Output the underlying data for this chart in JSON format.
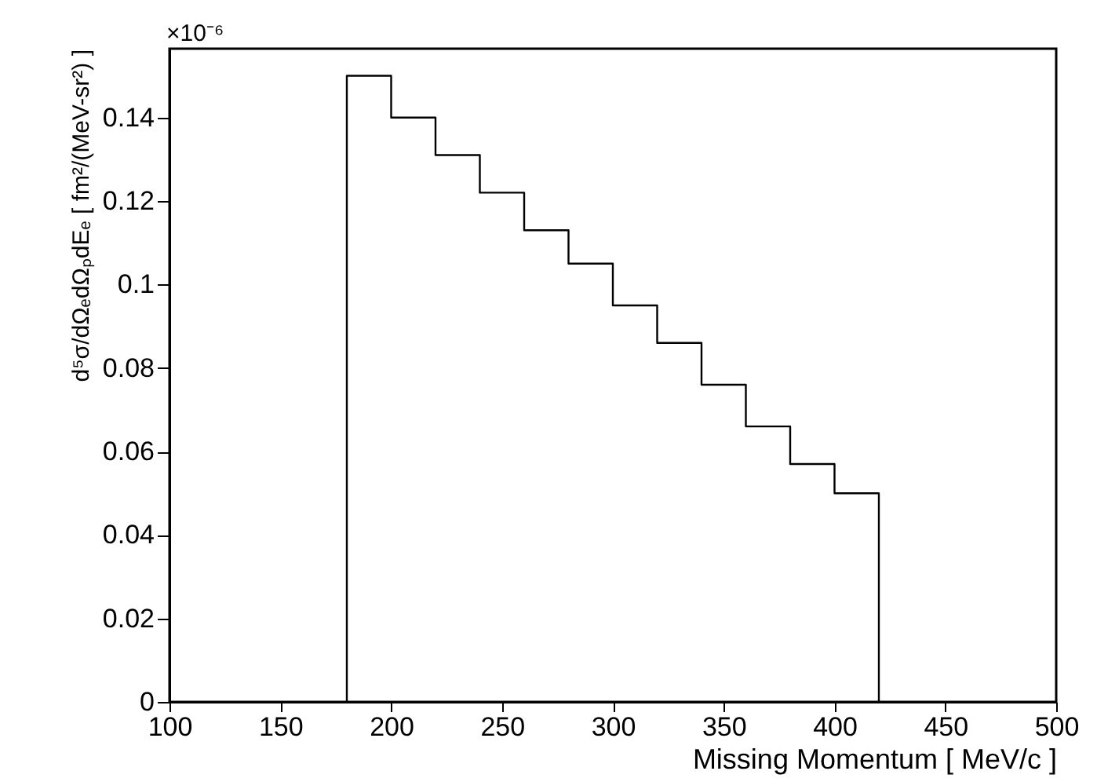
{
  "chart_data": {
    "type": "histogram",
    "xlabel": "Missing Momentum [ MeV/c ]",
    "ylabel": "d⁵σ/dΩₑdΩₚdEₑ [ fm²/(MeV-sr²) ]",
    "bins": [
      180,
      200,
      220,
      240,
      260,
      280,
      300,
      320,
      340,
      360,
      380,
      400,
      420
    ],
    "values": [
      0.15,
      0.14,
      0.131,
      0.122,
      0.113,
      0.105,
      0.095,
      0.086,
      0.076,
      0.066,
      0.057,
      0.05
    ],
    "color": "#000000",
    "xlim": [
      100,
      500
    ],
    "xticks": [
      100,
      150,
      200,
      250,
      300,
      350,
      400,
      450,
      500
    ],
    "ylim": [
      0,
      0.1565
    ],
    "yticks": [
      0,
      0.02,
      0.04,
      0.06,
      0.08,
      0.1,
      0.12,
      0.14
    ],
    "annotations": [
      "×10⁻⁶"
    ],
    "grid": false
  }
}
